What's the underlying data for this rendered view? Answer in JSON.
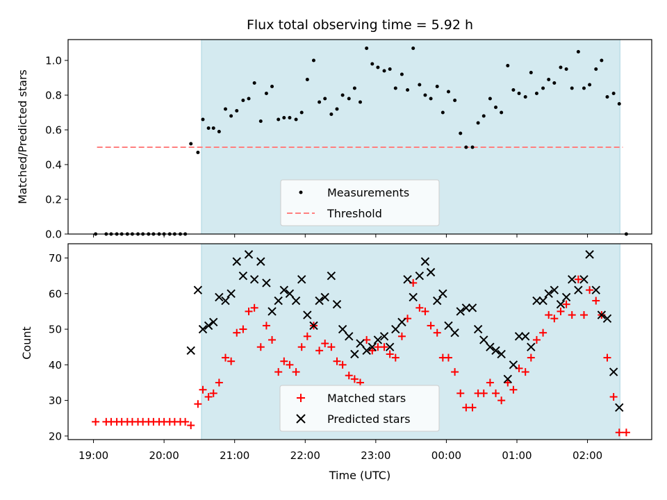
{
  "figure": {
    "title": "Flux total observing time = 5.92 h",
    "xlabel": "Time (UTC)",
    "x_tick_labels": [
      "19:00",
      "20:00",
      "21:00",
      "22:00",
      "23:00",
      "00:00",
      "01:00",
      "02:00"
    ],
    "x_tick_hours": [
      19,
      20,
      21,
      22,
      23,
      24,
      25,
      26
    ],
    "xlim_hours": [
      18.64,
      26.91
    ],
    "shaded_span_hours": [
      20.53,
      26.46
    ],
    "shade_color": "#d4eaf0",
    "shade_edge_color": "#a9d4e0"
  },
  "chart_data": [
    {
      "type": "scatter",
      "ylabel": "Matched/Predicted stars",
      "ylim": [
        0,
        1.12
      ],
      "y_tick_labels": [
        "0.0",
        "0.2",
        "0.4",
        "0.6",
        "0.8",
        "1.0"
      ],
      "y_ticks": [
        0,
        0.2,
        0.4,
        0.6,
        0.8,
        1.0
      ],
      "x_unit": "hours UTC (values >24 are after midnight)",
      "legend": {
        "placement": "lower center",
        "entries": [
          "Measurements",
          "Threshold"
        ]
      },
      "threshold": {
        "name": "Threshold",
        "value": 0.5,
        "x_range": [
          19.05,
          26.5
        ],
        "color": "#ff7f7f",
        "style": "dashed"
      },
      "series": [
        {
          "name": "Measurements",
          "color": "#000000",
          "marker": "dot",
          "points": [
            [
              19.03,
              0
            ],
            [
              19.18,
              0
            ],
            [
              19.25,
              0
            ],
            [
              19.33,
              0
            ],
            [
              19.4,
              0
            ],
            [
              19.48,
              0
            ],
            [
              19.55,
              0
            ],
            [
              19.63,
              0
            ],
            [
              19.7,
              0
            ],
            [
              19.78,
              0
            ],
            [
              19.85,
              0
            ],
            [
              19.93,
              0
            ],
            [
              20.0,
              0
            ],
            [
              20.08,
              0
            ],
            [
              20.15,
              0
            ],
            [
              20.23,
              0
            ],
            [
              20.3,
              0
            ],
            [
              20.38,
              0.52
            ],
            [
              20.48,
              0.47
            ],
            [
              20.55,
              0.66
            ],
            [
              20.63,
              0.61
            ],
            [
              20.7,
              0.61
            ],
            [
              20.78,
              0.59
            ],
            [
              20.87,
              0.72
            ],
            [
              20.95,
              0.68
            ],
            [
              21.03,
              0.71
            ],
            [
              21.12,
              0.77
            ],
            [
              21.2,
              0.78
            ],
            [
              21.28,
              0.87
            ],
            [
              21.37,
              0.65
            ],
            [
              21.45,
              0.81
            ],
            [
              21.53,
              0.85
            ],
            [
              21.62,
              0.66
            ],
            [
              21.7,
              0.67
            ],
            [
              21.78,
              0.67
            ],
            [
              21.87,
              0.66
            ],
            [
              21.95,
              0.7
            ],
            [
              22.03,
              0.89
            ],
            [
              22.12,
              1.0
            ],
            [
              22.2,
              0.76
            ],
            [
              22.28,
              0.78
            ],
            [
              22.37,
              0.69
            ],
            [
              22.45,
              0.72
            ],
            [
              22.53,
              0.8
            ],
            [
              22.62,
              0.78
            ],
            [
              22.7,
              0.84
            ],
            [
              22.78,
              0.76
            ],
            [
              22.87,
              1.07
            ],
            [
              22.95,
              0.98
            ],
            [
              23.03,
              0.96
            ],
            [
              23.12,
              0.94
            ],
            [
              23.2,
              0.95
            ],
            [
              23.28,
              0.84
            ],
            [
              23.37,
              0.92
            ],
            [
              23.45,
              0.83
            ],
            [
              23.53,
              1.07
            ],
            [
              23.62,
              0.86
            ],
            [
              23.7,
              0.8
            ],
            [
              23.78,
              0.78
            ],
            [
              23.87,
              0.85
            ],
            [
              23.95,
              0.7
            ],
            [
              24.03,
              0.82
            ],
            [
              24.12,
              0.77
            ],
            [
              24.2,
              0.58
            ],
            [
              24.28,
              0.5
            ],
            [
              24.37,
              0.5
            ],
            [
              24.45,
              0.64
            ],
            [
              24.53,
              0.68
            ],
            [
              24.62,
              0.78
            ],
            [
              24.7,
              0.73
            ],
            [
              24.78,
              0.7
            ],
            [
              24.87,
              0.97
            ],
            [
              24.95,
              0.83
            ],
            [
              25.03,
              0.81
            ],
            [
              25.12,
              0.79
            ],
            [
              25.2,
              0.93
            ],
            [
              25.28,
              0.81
            ],
            [
              25.37,
              0.84
            ],
            [
              25.45,
              0.89
            ],
            [
              25.53,
              0.87
            ],
            [
              25.62,
              0.96
            ],
            [
              25.7,
              0.95
            ],
            [
              25.78,
              0.84
            ],
            [
              25.87,
              1.05
            ],
            [
              25.95,
              0.84
            ],
            [
              26.03,
              0.86
            ],
            [
              26.12,
              0.95
            ],
            [
              26.2,
              1.0
            ],
            [
              26.28,
              0.79
            ],
            [
              26.37,
              0.81
            ],
            [
              26.45,
              0.75
            ],
            [
              26.55,
              0
            ]
          ]
        }
      ]
    },
    {
      "type": "scatter",
      "ylabel": "Count",
      "ylim": [
        19,
        74
      ],
      "y_tick_labels": [
        "20",
        "30",
        "40",
        "50",
        "60",
        "70"
      ],
      "y_ticks": [
        20,
        30,
        40,
        50,
        60,
        70
      ],
      "x_unit": "hours UTC (values >24 are after midnight)",
      "legend": {
        "placement": "lower center",
        "entries": [
          "Matched stars",
          "Predicted stars"
        ]
      },
      "series": [
        {
          "name": "Matched stars",
          "color": "#ff0000",
          "marker": "plus",
          "points": [
            [
              19.03,
              24
            ],
            [
              19.18,
              24
            ],
            [
              19.25,
              24
            ],
            [
              19.33,
              24
            ],
            [
              19.4,
              24
            ],
            [
              19.48,
              24
            ],
            [
              19.55,
              24
            ],
            [
              19.63,
              24
            ],
            [
              19.7,
              24
            ],
            [
              19.78,
              24
            ],
            [
              19.85,
              24
            ],
            [
              19.93,
              24
            ],
            [
              20.0,
              24
            ],
            [
              20.08,
              24
            ],
            [
              20.15,
              24
            ],
            [
              20.23,
              24
            ],
            [
              20.3,
              24
            ],
            [
              20.38,
              23
            ],
            [
              20.48,
              29
            ],
            [
              20.55,
              33
            ],
            [
              20.63,
              31
            ],
            [
              20.7,
              32
            ],
            [
              20.78,
              35
            ],
            [
              20.87,
              42
            ],
            [
              20.95,
              41
            ],
            [
              21.03,
              49
            ],
            [
              21.12,
              50
            ],
            [
              21.2,
              55
            ],
            [
              21.28,
              56
            ],
            [
              21.37,
              45
            ],
            [
              21.45,
              51
            ],
            [
              21.53,
              47
            ],
            [
              21.62,
              38
            ],
            [
              21.7,
              41
            ],
            [
              21.78,
              40
            ],
            [
              21.87,
              38
            ],
            [
              21.95,
              45
            ],
            [
              22.03,
              48
            ],
            [
              22.12,
              51
            ],
            [
              22.2,
              44
            ],
            [
              22.28,
              46
            ],
            [
              22.37,
              45
            ],
            [
              22.45,
              41
            ],
            [
              22.53,
              40
            ],
            [
              22.62,
              37
            ],
            [
              22.7,
              36
            ],
            [
              22.78,
              35
            ],
            [
              22.87,
              47
            ],
            [
              22.95,
              44
            ],
            [
              23.03,
              45
            ],
            [
              23.12,
              45
            ],
            [
              23.2,
              43
            ],
            [
              23.28,
              42
            ],
            [
              23.37,
              48
            ],
            [
              23.45,
              53
            ],
            [
              23.53,
              63
            ],
            [
              23.62,
              56
            ],
            [
              23.7,
              55
            ],
            [
              23.78,
              51
            ],
            [
              23.87,
              49
            ],
            [
              23.95,
              42
            ],
            [
              24.03,
              42
            ],
            [
              24.12,
              38
            ],
            [
              24.2,
              32
            ],
            [
              24.28,
              28
            ],
            [
              24.37,
              28
            ],
            [
              24.45,
              32
            ],
            [
              24.53,
              32
            ],
            [
              24.62,
              35
            ],
            [
              24.7,
              32
            ],
            [
              24.78,
              30
            ],
            [
              24.87,
              35
            ],
            [
              24.95,
              33
            ],
            [
              25.03,
              39
            ],
            [
              25.12,
              38
            ],
            [
              25.2,
              42
            ],
            [
              25.28,
              47
            ],
            [
              25.37,
              49
            ],
            [
              25.45,
              54
            ],
            [
              25.53,
              53
            ],
            [
              25.62,
              55
            ],
            [
              25.7,
              57
            ],
            [
              25.78,
              54
            ],
            [
              25.87,
              64
            ],
            [
              25.95,
              54
            ],
            [
              26.03,
              61
            ],
            [
              26.12,
              58
            ],
            [
              26.2,
              54
            ],
            [
              26.28,
              42
            ],
            [
              26.37,
              31
            ],
            [
              26.45,
              21
            ],
            [
              26.55,
              21
            ]
          ]
        },
        {
          "name": "Predicted stars",
          "color": "#000000",
          "marker": "x",
          "points": [
            [
              20.38,
              44
            ],
            [
              20.48,
              61
            ],
            [
              20.55,
              50
            ],
            [
              20.63,
              51
            ],
            [
              20.7,
              52
            ],
            [
              20.78,
              59
            ],
            [
              20.87,
              58
            ],
            [
              20.95,
              60
            ],
            [
              21.03,
              69
            ],
            [
              21.12,
              65
            ],
            [
              21.2,
              71
            ],
            [
              21.28,
              64
            ],
            [
              21.37,
              69
            ],
            [
              21.45,
              63
            ],
            [
              21.53,
              55
            ],
            [
              21.62,
              58
            ],
            [
              21.7,
              61
            ],
            [
              21.78,
              60
            ],
            [
              21.87,
              58
            ],
            [
              21.95,
              64
            ],
            [
              22.03,
              54
            ],
            [
              22.12,
              51
            ],
            [
              22.2,
              58
            ],
            [
              22.28,
              59
            ],
            [
              22.37,
              65
            ],
            [
              22.45,
              57
            ],
            [
              22.53,
              50
            ],
            [
              22.62,
              48
            ],
            [
              22.7,
              43
            ],
            [
              22.78,
              46
            ],
            [
              22.87,
              44
            ],
            [
              22.95,
              45
            ],
            [
              23.03,
              47
            ],
            [
              23.12,
              48
            ],
            [
              23.2,
              45
            ],
            [
              23.28,
              50
            ],
            [
              23.37,
              52
            ],
            [
              23.45,
              64
            ],
            [
              23.53,
              59
            ],
            [
              23.62,
              65
            ],
            [
              23.7,
              69
            ],
            [
              23.78,
              66
            ],
            [
              23.87,
              58
            ],
            [
              23.95,
              60
            ],
            [
              24.03,
              51
            ],
            [
              24.12,
              49
            ],
            [
              24.2,
              55
            ],
            [
              24.28,
              56
            ],
            [
              24.37,
              56
            ],
            [
              24.45,
              50
            ],
            [
              24.53,
              47
            ],
            [
              24.62,
              45
            ],
            [
              24.7,
              44
            ],
            [
              24.78,
              43
            ],
            [
              24.87,
              36
            ],
            [
              24.95,
              40
            ],
            [
              25.03,
              48
            ],
            [
              25.12,
              48
            ],
            [
              25.2,
              45
            ],
            [
              25.28,
              58
            ],
            [
              25.37,
              58
            ],
            [
              25.45,
              60
            ],
            [
              25.53,
              61
            ],
            [
              25.62,
              57
            ],
            [
              25.7,
              59
            ],
            [
              25.78,
              64
            ],
            [
              25.87,
              61
            ],
            [
              25.95,
              64
            ],
            [
              26.03,
              71
            ],
            [
              26.12,
              61
            ],
            [
              26.2,
              54
            ],
            [
              26.28,
              53
            ],
            [
              26.37,
              38
            ],
            [
              26.45,
              28
            ]
          ]
        }
      ]
    }
  ]
}
